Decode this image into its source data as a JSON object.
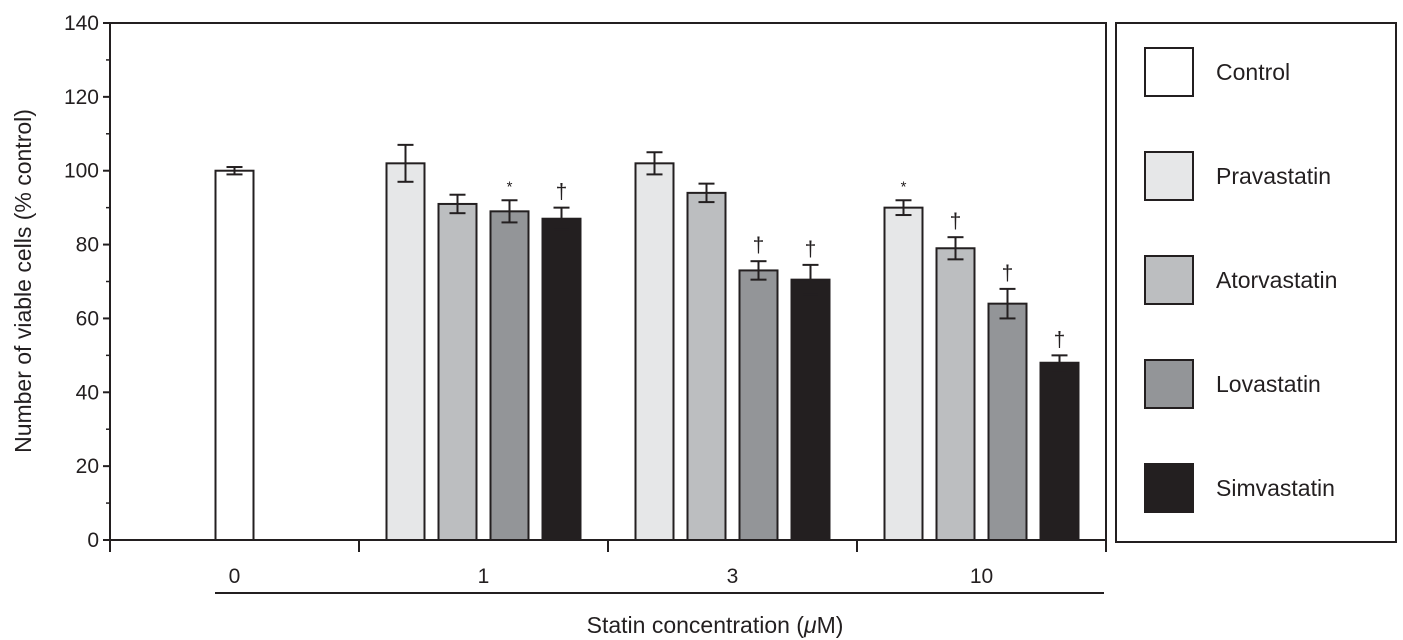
{
  "chart_data": {
    "type": "bar",
    "ylabel": "Number of viable cells (% control)",
    "xlabel_prefix": "Statin concentration (",
    "xlabel_unit": "μ",
    "xlabel_suffix": "M)",
    "ylim": [
      0,
      140
    ],
    "yticks": [
      0,
      20,
      40,
      60,
      80,
      100,
      120,
      140
    ],
    "legend_position": "right",
    "groups": [
      {
        "label": "0",
        "bars": [
          {
            "series": "Control",
            "value": 100,
            "error": 1,
            "sig": ""
          }
        ]
      },
      {
        "label": "1",
        "bars": [
          {
            "series": "Pravastatin",
            "value": 102,
            "error": 5,
            "sig": ""
          },
          {
            "series": "Atorvastatin",
            "value": 91,
            "error": 2.5,
            "sig": ""
          },
          {
            "series": "Lovastatin",
            "value": 89,
            "error": 3,
            "sig": "*"
          },
          {
            "series": "Simvastatin",
            "value": 87,
            "error": 3,
            "sig": "†"
          }
        ]
      },
      {
        "label": "3",
        "bars": [
          {
            "series": "Pravastatin",
            "value": 102,
            "error": 3,
            "sig": ""
          },
          {
            "series": "Atorvastatin",
            "value": 94,
            "error": 2.5,
            "sig": ""
          },
          {
            "series": "Lovastatin",
            "value": 73,
            "error": 2.5,
            "sig": "†"
          },
          {
            "series": "Simvastatin",
            "value": 70.5,
            "error": 4,
            "sig": "†"
          }
        ]
      },
      {
        "label": "10",
        "bars": [
          {
            "series": "Pravastatin",
            "value": 90,
            "error": 2,
            "sig": "*"
          },
          {
            "series": "Atorvastatin",
            "value": 79,
            "error": 3,
            "sig": "†"
          },
          {
            "series": "Lovastatin",
            "value": 64,
            "error": 4,
            "sig": "†"
          },
          {
            "series": "Simvastatin",
            "value": 48,
            "error": 2,
            "sig": "†"
          }
        ]
      }
    ],
    "series": [
      {
        "name": "Control",
        "color": "#ffffff"
      },
      {
        "name": "Pravastatin",
        "color": "#e6e7e8"
      },
      {
        "name": "Atorvastatin",
        "color": "#bcbec0"
      },
      {
        "name": "Lovastatin",
        "color": "#939598"
      },
      {
        "name": "Simvastatin",
        "color": "#231f20"
      }
    ]
  }
}
